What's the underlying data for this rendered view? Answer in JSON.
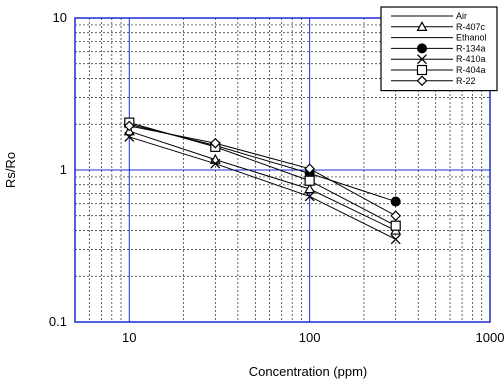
{
  "chart_data": {
    "type": "line",
    "xscale": "log",
    "yscale": "log",
    "xlim": [
      5,
      1000
    ],
    "ylim": [
      0.1,
      10
    ],
    "xlabel": "Concentration (ppm)",
    "ylabel": "Rs/Ro",
    "xticks": [
      {
        "value": 10,
        "label": "10"
      },
      {
        "value": 100,
        "label": "100"
      },
      {
        "value": 1000,
        "label": "1000"
      }
    ],
    "yticks": [
      {
        "value": 0.1,
        "label": "0.1"
      },
      {
        "value": 1,
        "label": "1"
      },
      {
        "value": 10,
        "label": "10"
      }
    ],
    "grid": true,
    "legend_position": "top-right",
    "series": [
      {
        "name": "Air",
        "marker": "none",
        "x": [],
        "y": []
      },
      {
        "name": "R-407c",
        "marker": "triangle",
        "x": [
          10,
          30,
          100,
          300
        ],
        "y": [
          1.8,
          1.17,
          0.75,
          0.4
        ]
      },
      {
        "name": "Ethanol",
        "marker": "none",
        "x": [],
        "y": []
      },
      {
        "name": "R-134a",
        "marker": "filled-circle",
        "x": [
          10,
          30,
          100,
          300
        ],
        "y": [
          2.0,
          1.45,
          0.95,
          0.62
        ]
      },
      {
        "name": "R-410a",
        "marker": "x",
        "x": [
          10,
          30,
          100,
          300
        ],
        "y": [
          1.65,
          1.1,
          0.67,
          0.35
        ]
      },
      {
        "name": "R-404a",
        "marker": "square",
        "x": [
          10,
          30,
          100,
          300
        ],
        "y": [
          2.05,
          1.42,
          0.85,
          0.43
        ]
      },
      {
        "name": "R-22",
        "marker": "diamond",
        "x": [
          10,
          30,
          100,
          300
        ],
        "y": [
          1.95,
          1.5,
          1.02,
          0.5
        ]
      }
    ]
  }
}
